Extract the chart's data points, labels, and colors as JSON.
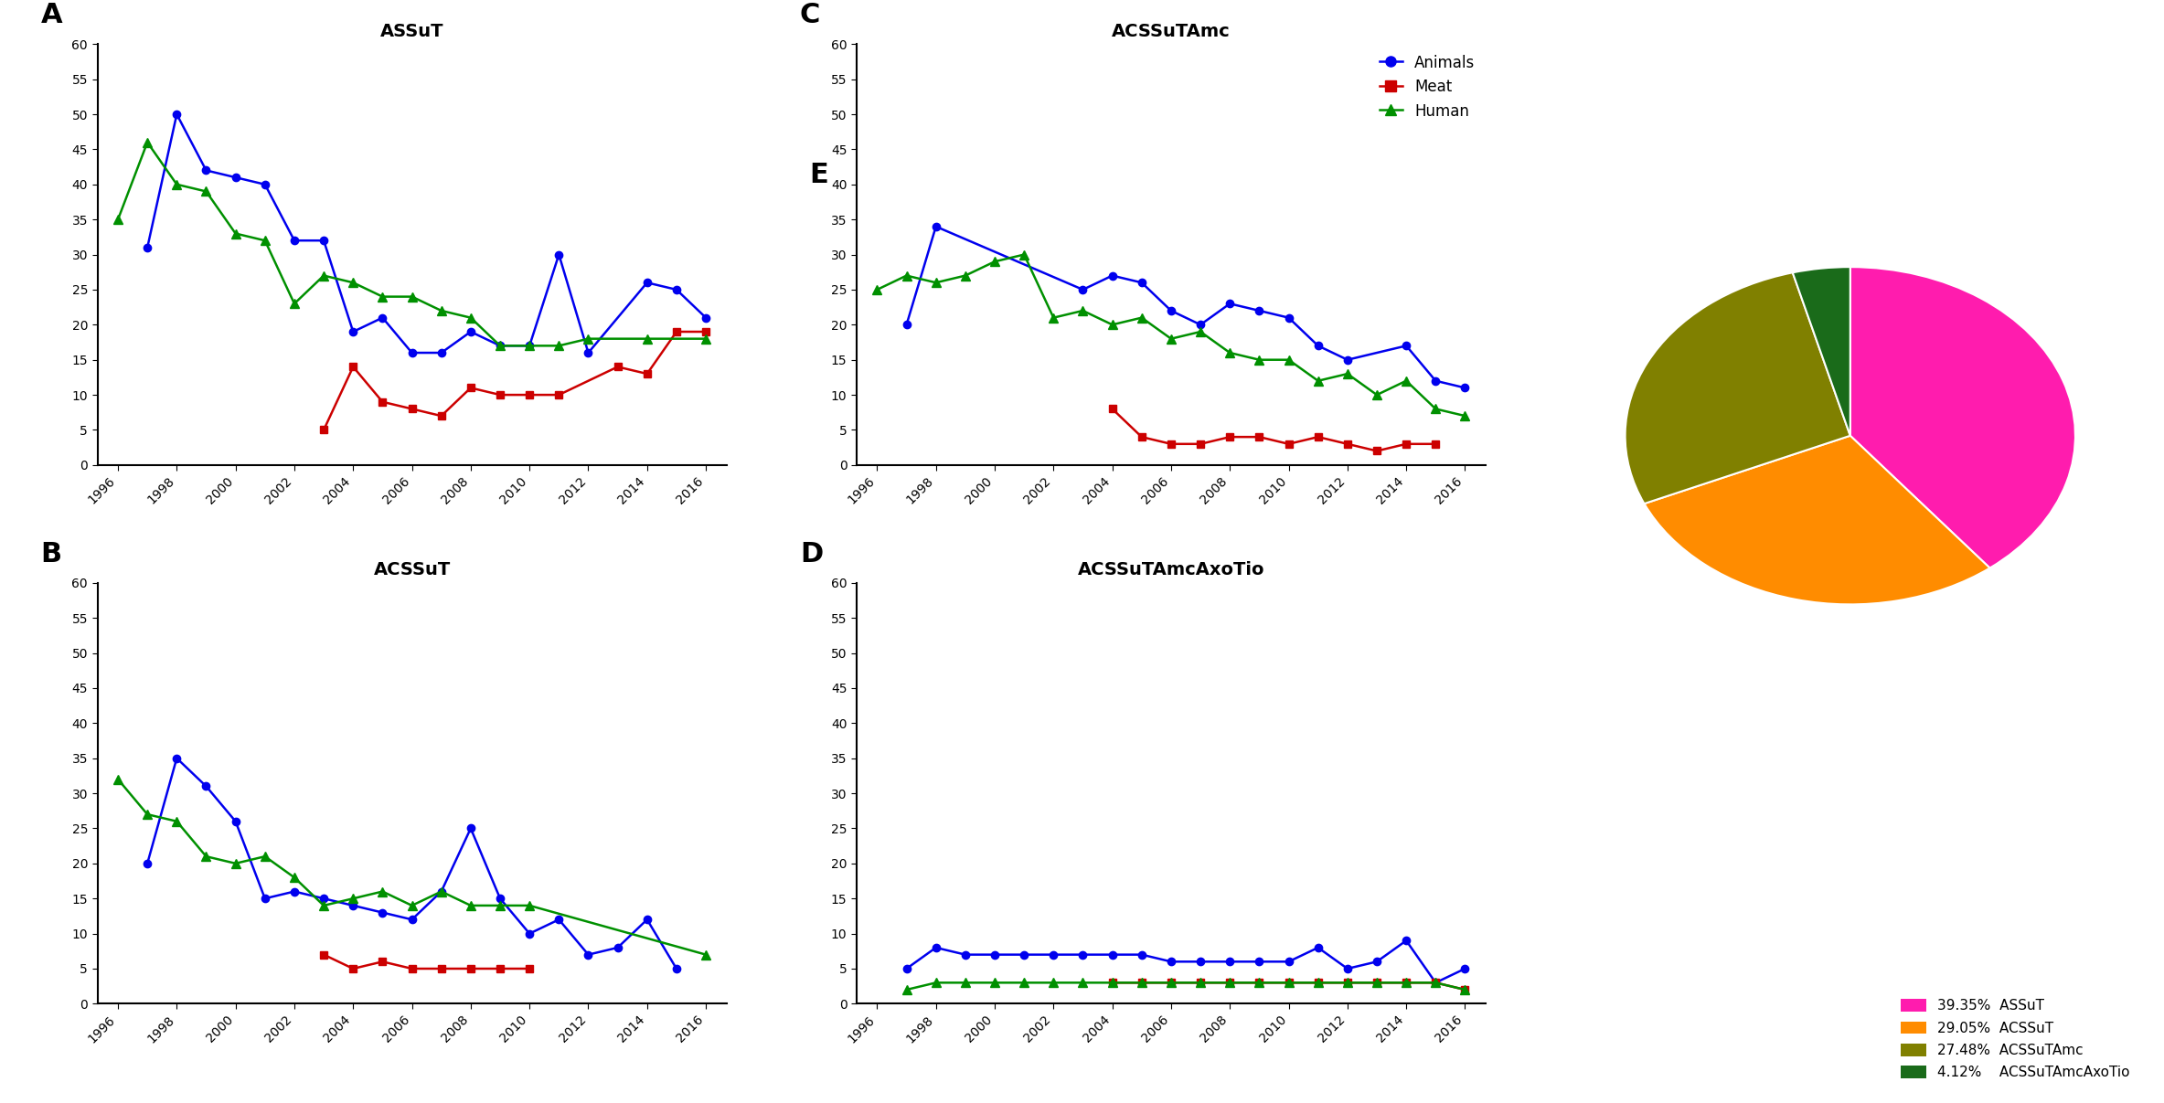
{
  "years": [
    1996,
    1997,
    1998,
    1999,
    2000,
    2001,
    2002,
    2003,
    2004,
    2005,
    2006,
    2007,
    2008,
    2009,
    2010,
    2011,
    2012,
    2013,
    2014,
    2015,
    2016
  ],
  "ASSuT": {
    "Animals": [
      null,
      31,
      50,
      42,
      41,
      40,
      32,
      32,
      19,
      21,
      16,
      16,
      19,
      17,
      17,
      30,
      16,
      null,
      26,
      25,
      21
    ],
    "Meat": [
      null,
      null,
      null,
      null,
      null,
      null,
      null,
      5,
      14,
      9,
      8,
      7,
      11,
      10,
      10,
      10,
      null,
      14,
      13,
      19,
      19
    ],
    "Human": [
      35,
      46,
      40,
      39,
      33,
      32,
      23,
      27,
      26,
      24,
      24,
      22,
      21,
      17,
      17,
      17,
      18,
      null,
      18,
      null,
      18
    ]
  },
  "ACSSuT": {
    "Animals": [
      null,
      20,
      35,
      31,
      26,
      15,
      16,
      15,
      14,
      13,
      12,
      16,
      25,
      15,
      10,
      12,
      7,
      8,
      12,
      5,
      null
    ],
    "Meat": [
      null,
      null,
      null,
      null,
      null,
      null,
      null,
      7,
      5,
      6,
      5,
      5,
      5,
      5,
      5,
      null,
      null,
      null,
      null,
      null,
      null
    ],
    "Human": [
      32,
      27,
      26,
      21,
      20,
      21,
      18,
      14,
      15,
      16,
      14,
      16,
      14,
      14,
      14,
      null,
      null,
      null,
      null,
      null,
      7
    ]
  },
  "ACSSuTAmc": {
    "Animals": [
      null,
      20,
      34,
      null,
      null,
      null,
      null,
      25,
      27,
      26,
      22,
      20,
      23,
      22,
      21,
      17,
      15,
      null,
      17,
      12,
      11
    ],
    "Meat": [
      null,
      null,
      null,
      null,
      null,
      null,
      null,
      null,
      8,
      4,
      3,
      3,
      4,
      4,
      3,
      4,
      3,
      2,
      3,
      3,
      null
    ],
    "Human": [
      25,
      27,
      26,
      27,
      29,
      30,
      21,
      22,
      20,
      21,
      18,
      19,
      16,
      15,
      15,
      12,
      13,
      10,
      12,
      8,
      7
    ]
  },
  "ACSSuTAmcAxoTio": {
    "Animals": [
      null,
      5,
      8,
      7,
      7,
      7,
      7,
      7,
      7,
      7,
      6,
      6,
      6,
      6,
      6,
      8,
      5,
      6,
      9,
      3,
      5
    ],
    "Meat": [
      null,
      null,
      null,
      null,
      null,
      null,
      null,
      null,
      3,
      3,
      3,
      3,
      3,
      3,
      3,
      3,
      3,
      3,
      3,
      3,
      2
    ],
    "Human": [
      null,
      2,
      3,
      3,
      3,
      3,
      3,
      3,
      3,
      3,
      3,
      3,
      3,
      3,
      3,
      3,
      3,
      3,
      3,
      3,
      2
    ]
  },
  "pie": {
    "labels": [
      "ASSuT",
      "ACSSuT",
      "ACSSuTAmc",
      "ACSSuTAmcAxoTio"
    ],
    "values": [
      39.35,
      29.05,
      27.48,
      4.12
    ],
    "colors": [
      "#FF1CAE",
      "#FF8C00",
      "#808000",
      "#1A6B1A"
    ],
    "legend_text": [
      "39.35%  ASSuT",
      "29.05%  ACSSuT",
      "27.48%  ACSSuTAmc",
      "4.12%    ACSSuTAmcAxoTio"
    ]
  },
  "colors": {
    "Animals": "#0000EE",
    "Meat": "#CC0000",
    "Human": "#009000"
  },
  "ylim": [
    0,
    60
  ],
  "yticks": [
    0,
    5,
    10,
    15,
    20,
    25,
    30,
    35,
    40,
    45,
    50,
    55,
    60
  ],
  "background_color": "#FFFFFF"
}
